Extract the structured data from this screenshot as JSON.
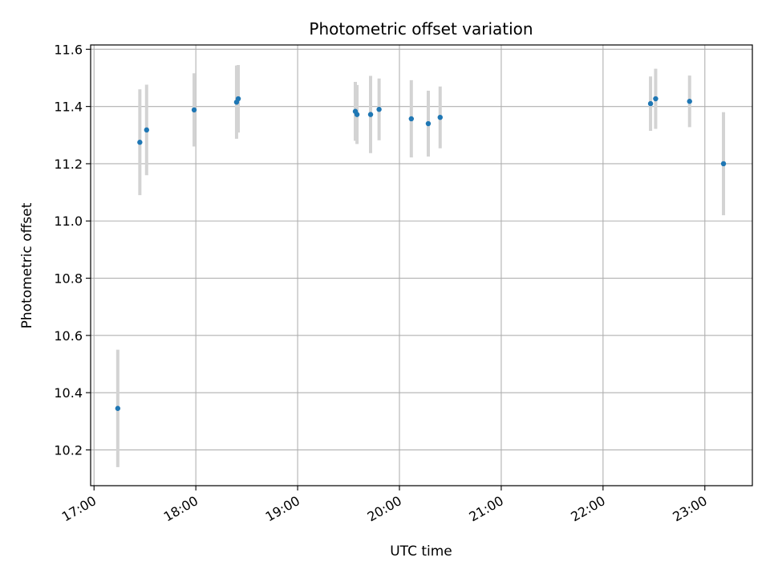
{
  "chart_data": {
    "type": "scatter",
    "title": "Photometric offset variation",
    "xlabel": "UTC time",
    "ylabel": "Photometric offset",
    "x_axis_type": "time",
    "xlim": [
      "16:58",
      "23:28"
    ],
    "ylim": [
      10.075,
      11.615
    ],
    "x_ticks": [
      {
        "value": "17:00",
        "label": "17:00"
      },
      {
        "value": "18:00",
        "label": "18:00"
      },
      {
        "value": "19:00",
        "label": "19:00"
      },
      {
        "value": "20:00",
        "label": "20:00"
      },
      {
        "value": "21:00",
        "label": "21:00"
      },
      {
        "value": "22:00",
        "label": "22:00"
      },
      {
        "value": "23:00",
        "label": "23:00"
      }
    ],
    "y_ticks": [
      {
        "value": 10.2,
        "label": "10.2"
      },
      {
        "value": 10.4,
        "label": "10.4"
      },
      {
        "value": 10.6,
        "label": "10.6"
      },
      {
        "value": 10.8,
        "label": "10.8"
      },
      {
        "value": 11.0,
        "label": "11.0"
      },
      {
        "value": 11.2,
        "label": "11.2"
      },
      {
        "value": 11.4,
        "label": "11.4"
      },
      {
        "value": 11.6,
        "label": "11.6"
      }
    ],
    "grid": true,
    "point_color": "#1f77b4",
    "errorbar_color": "#d3d3d3",
    "points": [
      {
        "x": "17:14",
        "y": 10.345,
        "yerr": 0.205
      },
      {
        "x": "17:27",
        "y": 11.275,
        "yerr": 0.185
      },
      {
        "x": "17:31",
        "y": 11.318,
        "yerr": 0.158
      },
      {
        "x": "17:59",
        "y": 11.388,
        "yerr": 0.128
      },
      {
        "x": "18:24",
        "y": 11.415,
        "yerr": 0.128
      },
      {
        "x": "18:25",
        "y": 11.427,
        "yerr": 0.118
      },
      {
        "x": "19:34",
        "y": 11.383,
        "yerr": 0.103
      },
      {
        "x": "19:35",
        "y": 11.372,
        "yerr": 0.103
      },
      {
        "x": "19:43",
        "y": 11.372,
        "yerr": 0.135
      },
      {
        "x": "19:48",
        "y": 11.39,
        "yerr": 0.108
      },
      {
        "x": "20:07",
        "y": 11.357,
        "yerr": 0.135
      },
      {
        "x": "20:17",
        "y": 11.34,
        "yerr": 0.115
      },
      {
        "x": "20:24",
        "y": 11.362,
        "yerr": 0.108
      },
      {
        "x": "22:28",
        "y": 11.41,
        "yerr": 0.095
      },
      {
        "x": "22:31",
        "y": 11.427,
        "yerr": 0.105
      },
      {
        "x": "22:51",
        "y": 11.418,
        "yerr": 0.09
      },
      {
        "x": "23:11",
        "y": 11.2,
        "yerr": 0.18
      }
    ]
  }
}
